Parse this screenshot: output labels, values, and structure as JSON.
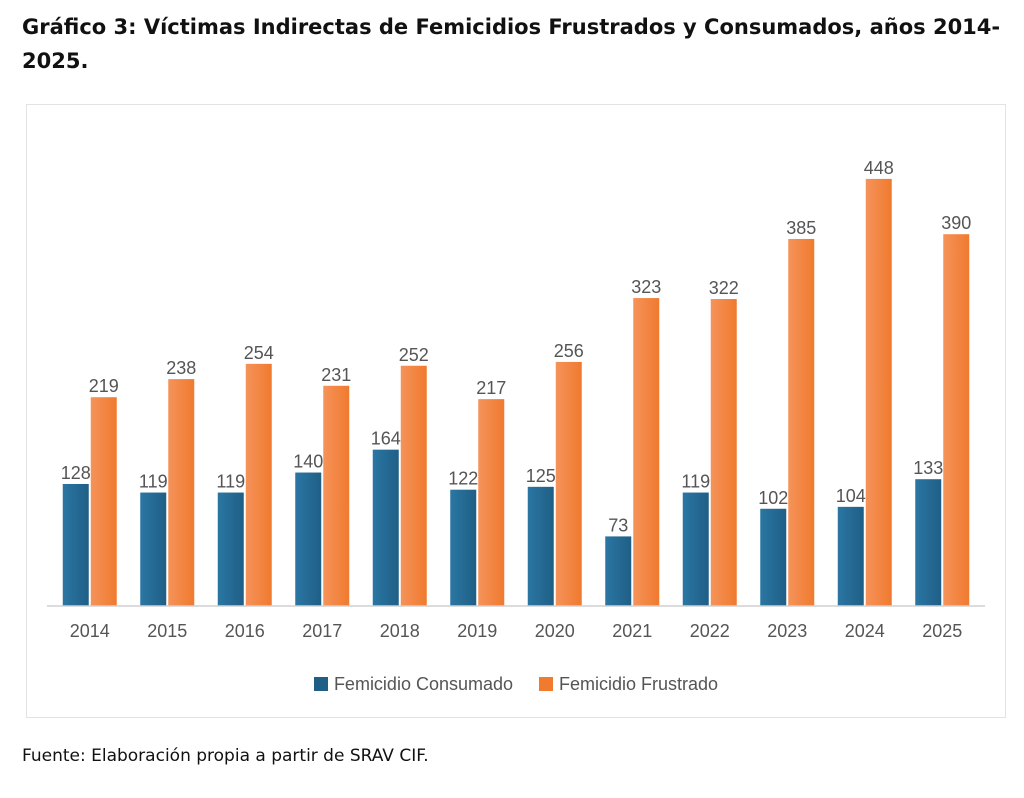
{
  "title": "Gráfico 3: Víctimas Indirectas de Femicidios Frustrados y Consumados, años 2014-2025.",
  "source": "Fuente: Elaboración propia a partir de SRAV CIF.",
  "colors": {
    "consumado": "#1f5f86",
    "frustrado": "#f07a2e",
    "axis": "#d0d0d0",
    "label": "#555555"
  },
  "legend": {
    "position": "bottom",
    "items": [
      {
        "label": "Femicidio Consumado",
        "color": "#1f5f86"
      },
      {
        "label": "Femicidio Frustrado",
        "color": "#f07a2e"
      }
    ]
  },
  "chart_data": {
    "type": "bar",
    "categories": [
      "2014",
      "2015",
      "2016",
      "2017",
      "2018",
      "2019",
      "2020",
      "2021",
      "2022",
      "2023",
      "2024",
      "2025"
    ],
    "series": [
      {
        "name": "Femicidio Consumado",
        "values": [
          128,
          119,
          119,
          140,
          164,
          122,
          125,
          73,
          119,
          102,
          104,
          133
        ]
      },
      {
        "name": "Femicidio Frustrado",
        "values": [
          219,
          238,
          254,
          231,
          252,
          217,
          256,
          323,
          322,
          385,
          448,
          390
        ]
      }
    ],
    "ylim": [
      0,
      450
    ],
    "grid": false,
    "data_labels": true
  }
}
